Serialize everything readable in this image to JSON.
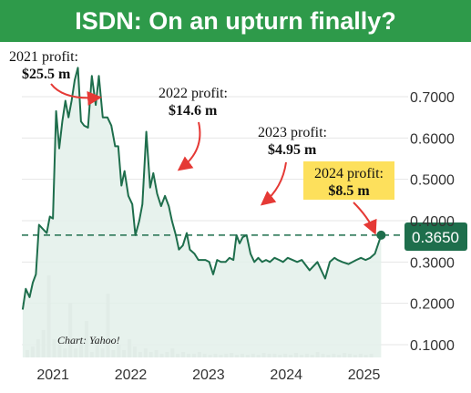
{
  "title": "ISDN: On an upturn finally?",
  "credit": "Chart: Yahoo!",
  "current_price": "0.3650",
  "colors": {
    "banner": "#2e9a4a",
    "line": "#1e6e4c",
    "fill": "#e3f0ea",
    "arrow": "#e53935",
    "highlight": "#fde05c",
    "bars": "#d4d4d4"
  },
  "annotations": [
    {
      "line1": "2021 profit:",
      "line2": "$25.5 m"
    },
    {
      "line1": "2022 profit:",
      "line2": "$14.6 m"
    },
    {
      "line1": "2023 profit:",
      "line2": "$4.95 m"
    },
    {
      "line1": "2024 profit:",
      "line2": "$8.5 m"
    }
  ],
  "chart_data": {
    "type": "line",
    "title": "ISDN: On an upturn finally?",
    "xlim": [
      2020.6,
      2025.45
    ],
    "ylim": [
      0.08,
      0.8
    ],
    "y_ticks": [
      "0.1000",
      "0.2000",
      "0.3000",
      "0.4000",
      "0.5000",
      "0.6000",
      "0.7000"
    ],
    "x_ticks": [
      "2021",
      "2022",
      "2023",
      "2024",
      "2025"
    ],
    "current_price": 0.365,
    "series": [
      {
        "x": [
          2020.61,
          2020.65,
          2020.7,
          2020.74,
          2020.78,
          2020.82,
          2020.87,
          2020.92,
          2020.96,
          2021.0,
          2021.04,
          2021.08,
          2021.12,
          2021.16,
          2021.2,
          2021.24,
          2021.28,
          2021.32,
          2021.36,
          2021.4,
          2021.45,
          2021.5,
          2021.55,
          2021.59,
          2021.64,
          2021.7,
          2021.75,
          2021.8,
          2021.84,
          2021.88,
          2021.92,
          2021.97,
          2022.02,
          2022.06,
          2022.11,
          2022.15,
          2022.2,
          2022.25,
          2022.29,
          2022.34,
          2022.39,
          2022.44,
          2022.49,
          2022.53,
          2022.58,
          2022.62,
          2022.67,
          2022.72,
          2022.76,
          2022.82,
          2022.87,
          2022.91,
          2022.96,
          2023.01,
          2023.06,
          2023.11,
          2023.16,
          2023.22,
          2023.27,
          2023.32,
          2023.36,
          2023.4,
          2023.44,
          2023.49,
          2023.54,
          2023.59,
          2023.64,
          2023.69,
          2023.74,
          2023.79,
          2023.85,
          2023.91,
          2023.96,
          2024.02,
          2024.08,
          2024.14,
          2024.2,
          2024.3,
          2024.4,
          2024.5,
          2024.56,
          2024.62,
          2024.66,
          2024.72,
          2024.8,
          2024.9,
          2024.96,
          2025.02,
          2025.08,
          2025.14,
          2025.22
        ],
        "y": [
          0.185,
          0.235,
          0.215,
          0.25,
          0.27,
          0.39,
          0.38,
          0.37,
          0.41,
          0.405,
          0.665,
          0.575,
          0.64,
          0.69,
          0.65,
          0.69,
          0.74,
          0.77,
          0.64,
          0.63,
          0.625,
          0.75,
          0.68,
          0.75,
          0.65,
          0.65,
          0.63,
          0.58,
          0.58,
          0.485,
          0.52,
          0.46,
          0.44,
          0.365,
          0.4,
          0.44,
          0.615,
          0.48,
          0.515,
          0.465,
          0.435,
          0.46,
          0.435,
          0.4,
          0.365,
          0.33,
          0.34,
          0.37,
          0.33,
          0.32,
          0.305,
          0.305,
          0.305,
          0.3,
          0.27,
          0.305,
          0.3,
          0.3,
          0.31,
          0.305,
          0.365,
          0.345,
          0.36,
          0.365,
          0.32,
          0.3,
          0.31,
          0.3,
          0.305,
          0.3,
          0.31,
          0.305,
          0.3,
          0.31,
          0.305,
          0.3,
          0.305,
          0.28,
          0.3,
          0.26,
          0.3,
          0.31,
          0.305,
          0.3,
          0.295,
          0.305,
          0.31,
          0.305,
          0.31,
          0.32,
          0.365
        ]
      }
    ],
    "volume_bars_note": ""
  }
}
